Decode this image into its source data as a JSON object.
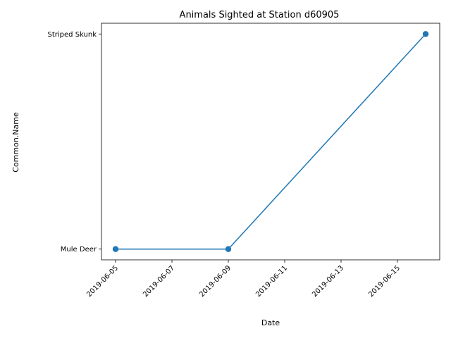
{
  "chart_data": {
    "type": "line",
    "title": "Animals Sighted at Station d60905",
    "xlabel": "Date",
    "ylabel": "Common.Name",
    "x_ticks": [
      "2019-06-05",
      "2019-06-07",
      "2019-06-09",
      "2019-06-11",
      "2019-06-13",
      "2019-06-15"
    ],
    "y_categories": [
      "Mule Deer",
      "Striped Skunk"
    ],
    "xlim": [
      "2019-06-04 12:00",
      "2019-06-16 12:00"
    ],
    "points": [
      {
        "x": "2019-06-05",
        "y": "Mule Deer"
      },
      {
        "x": "2019-06-09",
        "y": "Mule Deer"
      },
      {
        "x": "2019-06-16",
        "y": "Striped Skunk"
      }
    ],
    "grid": false,
    "legend": "none",
    "colors": {
      "series": "#1f77b4"
    }
  }
}
